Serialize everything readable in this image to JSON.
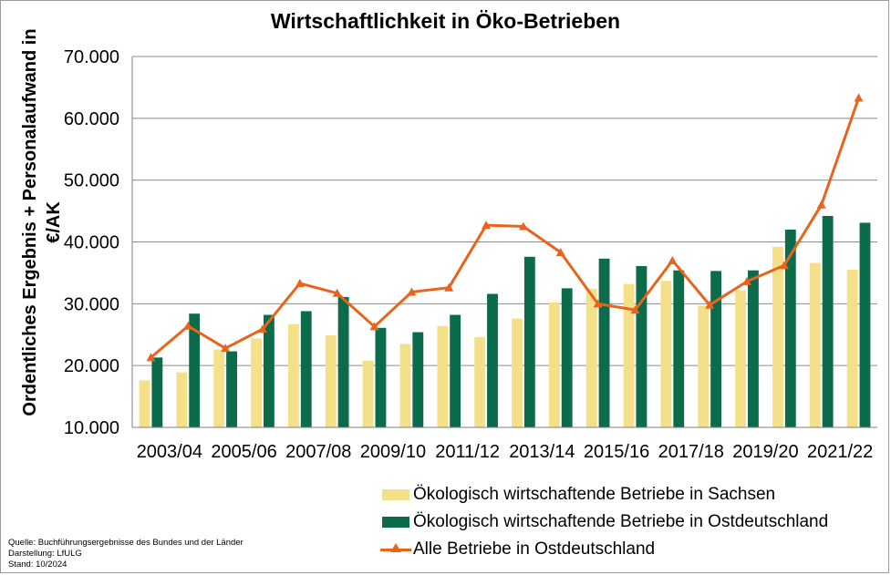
{
  "chart_data": {
    "type": "bar",
    "title": "Wirtschaftlichkeit in Öko-Betrieben",
    "ylabel": "Ordentliches Ergebnis + Personalaufwand in €/AK",
    "ylim": [
      10000,
      70000
    ],
    "yticks": [
      "10.000",
      "20.000",
      "30.000",
      "40.000",
      "50.000",
      "60.000",
      "70.000"
    ],
    "ytick_values": [
      10000,
      20000,
      30000,
      40000,
      50000,
      60000,
      70000
    ],
    "grid": true,
    "legend_position": "bottom-right",
    "categories": [
      "2003/04",
      "2004/05",
      "2005/06",
      "2006/07",
      "2007/08",
      "2008/09",
      "2009/10",
      "2010/11",
      "2011/12",
      "2012/13",
      "2013/14",
      "2014/15",
      "2015/16",
      "2016/17",
      "2017/18",
      "2018/19",
      "2019/20",
      "2020/21",
      "2021/22",
      "2022/23"
    ],
    "xtick_labels": [
      "2003/04",
      "",
      "2005/06",
      "",
      "2007/08",
      "",
      "2009/10",
      "",
      "2011/12",
      "",
      "2013/14",
      "",
      "2015/16",
      "",
      "2017/18",
      "",
      "2019/20",
      "",
      "2021/22",
      ""
    ],
    "series": [
      {
        "name": "Ökologisch wirtschaftende Betriebe in Sachsen",
        "kind": "bar",
        "color": "#f5e08a",
        "values": [
          17600,
          18900,
          22600,
          24400,
          26700,
          24900,
          20800,
          23500,
          26400,
          24600,
          27600,
          30200,
          32400,
          33200,
          33700,
          29700,
          32200,
          39200,
          36600,
          35500
        ]
      },
      {
        "name": "Ökologisch wirtschaftende Betriebe in Ostdeutschland",
        "kind": "bar",
        "color": "#0b6b4a",
        "values": [
          21300,
          28400,
          22300,
          28200,
          28800,
          31100,
          26100,
          25400,
          28200,
          31600,
          37600,
          32500,
          37300,
          36100,
          35400,
          35300,
          35400,
          42000,
          44200,
          43100
        ]
      },
      {
        "name": "Alle Betriebe in Ostdeutschland",
        "kind": "line",
        "color": "#e8641c",
        "values": [
          21300,
          26400,
          22800,
          25900,
          33300,
          31700,
          26300,
          31900,
          32600,
          42700,
          42500,
          38300,
          30000,
          29000,
          37000,
          29800,
          33600,
          36200,
          46000,
          63300
        ]
      }
    ]
  },
  "source": {
    "line1": "Quelle:  Buchführungsergebnisse des Bundes und der Länder",
    "line2": "Darstellung: LfULG",
    "line3": "Stand: 10/2024"
  }
}
